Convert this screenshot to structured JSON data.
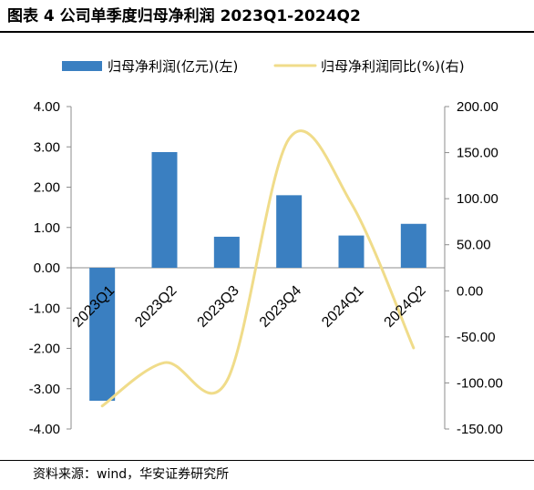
{
  "page": {
    "title": "图表 4 公司单季度归母净利润 2023Q1-2024Q2",
    "source": "资料来源：wind，华安证券研究所"
  },
  "chart_data": {
    "type": "bar+line",
    "categories": [
      "2023Q1",
      "2023Q2",
      "2023Q3",
      "2023Q4",
      "2024Q1",
      "2024Q2"
    ],
    "series": [
      {
        "name": "归母净利润(亿元)(左)",
        "type": "bar",
        "axis": "left",
        "color": "#3A7FC1",
        "values": [
          -3.3,
          2.87,
          0.77,
          1.8,
          0.8,
          1.09
        ]
      },
      {
        "name": "归母净利润同比(%)(右)",
        "type": "line",
        "axis": "right",
        "smooth": true,
        "color": "#F0DC8A",
        "values": [
          -125,
          -78,
          -98,
          165,
          95,
          -62
        ]
      }
    ],
    "y_left": {
      "range": [
        -4,
        4
      ],
      "ticks": [
        "4.00",
        "3.00",
        "2.00",
        "1.00",
        "0.00",
        "-1.00",
        "-2.00",
        "-3.00",
        "-4.00"
      ],
      "tick_values": [
        4,
        3,
        2,
        1,
        0,
        -1,
        -2,
        -3,
        -4
      ]
    },
    "y_right": {
      "range": [
        -150,
        200
      ],
      "ticks": [
        "200.00",
        "150.00",
        "100.00",
        "50.00",
        "0.00",
        "-50.00",
        "-100.00",
        "-150.00"
      ],
      "tick_values": [
        200,
        150,
        100,
        50,
        0,
        -50,
        -100,
        -150
      ]
    },
    "legend_position": "top",
    "grid": false
  }
}
